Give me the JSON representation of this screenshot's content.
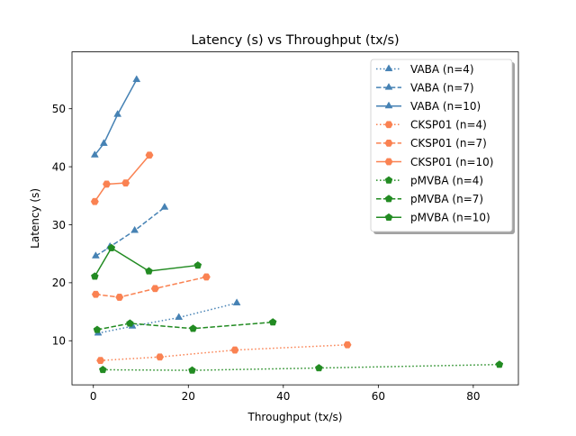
{
  "chart_data": {
    "type": "line",
    "title": "Latency (s) vs Throughput (tx/s)",
    "xlabel": "Throughput (tx/s)",
    "ylabel": "Latency (s)",
    "xlim": [
      -4.5,
      89.5
    ],
    "ylim": [
      2.4,
      59.8
    ],
    "xticks": [
      0,
      20,
      40,
      60,
      80
    ],
    "yticks": [
      10,
      20,
      30,
      40,
      50
    ],
    "grid": false,
    "legend_position": "top-right",
    "series": [
      {
        "name": "VABA (n=4)",
        "color": "#4682b4",
        "style": "dotted",
        "marker": "triangle",
        "x": [
          1.0,
          8.2,
          18.0,
          30.2
        ],
        "y": [
          11.3,
          12.5,
          14.0,
          16.5
        ]
      },
      {
        "name": "VABA (n=7)",
        "color": "#4682b4",
        "style": "dashed",
        "marker": "triangle",
        "x": [
          0.5,
          3.5,
          8.7,
          15.0
        ],
        "y": [
          24.6,
          26.2,
          29.0,
          33.0
        ]
      },
      {
        "name": "VABA (n=10)",
        "color": "#4682b4",
        "style": "solid",
        "marker": "triangle",
        "x": [
          0.3,
          2.2,
          5.1,
          9.1
        ],
        "y": [
          42.0,
          44.0,
          49.0,
          55.0
        ]
      },
      {
        "name": "CKSP01 (n=4)",
        "color": "#fa8252",
        "style": "dotted",
        "marker": "hexagon",
        "x": [
          1.5,
          14.0,
          29.8,
          53.5
        ],
        "y": [
          6.6,
          7.2,
          8.4,
          9.3
        ]
      },
      {
        "name": "CKSP01 (n=7)",
        "color": "#fa8252",
        "style": "dashed",
        "marker": "hexagon",
        "x": [
          0.5,
          5.5,
          13.0,
          23.8
        ],
        "y": [
          18.0,
          17.5,
          19.0,
          21.0
        ]
      },
      {
        "name": "CKSP01 (n=10)",
        "color": "#fa8252",
        "style": "solid",
        "marker": "hexagon",
        "x": [
          0.3,
          2.8,
          6.8,
          11.8
        ],
        "y": [
          34.0,
          37.0,
          37.2,
          42.0
        ]
      },
      {
        "name": "pMVBA (n=4)",
        "color": "#228b22",
        "style": "dotted",
        "marker": "pentagon",
        "x": [
          2.0,
          20.8,
          47.5,
          85.5
        ],
        "y": [
          5.0,
          4.9,
          5.3,
          5.9
        ]
      },
      {
        "name": "pMVBA (n=7)",
        "color": "#228b22",
        "style": "dashed",
        "marker": "pentagon",
        "x": [
          0.8,
          7.7,
          21.0,
          37.8
        ],
        "y": [
          11.9,
          13.0,
          12.1,
          13.2
        ]
      },
      {
        "name": "pMVBA (n=10)",
        "color": "#228b22",
        "style": "solid",
        "marker": "pentagon",
        "x": [
          0.3,
          3.8,
          11.7,
          22.0
        ],
        "y": [
          21.1,
          26.0,
          22.0,
          23.0
        ]
      }
    ]
  }
}
